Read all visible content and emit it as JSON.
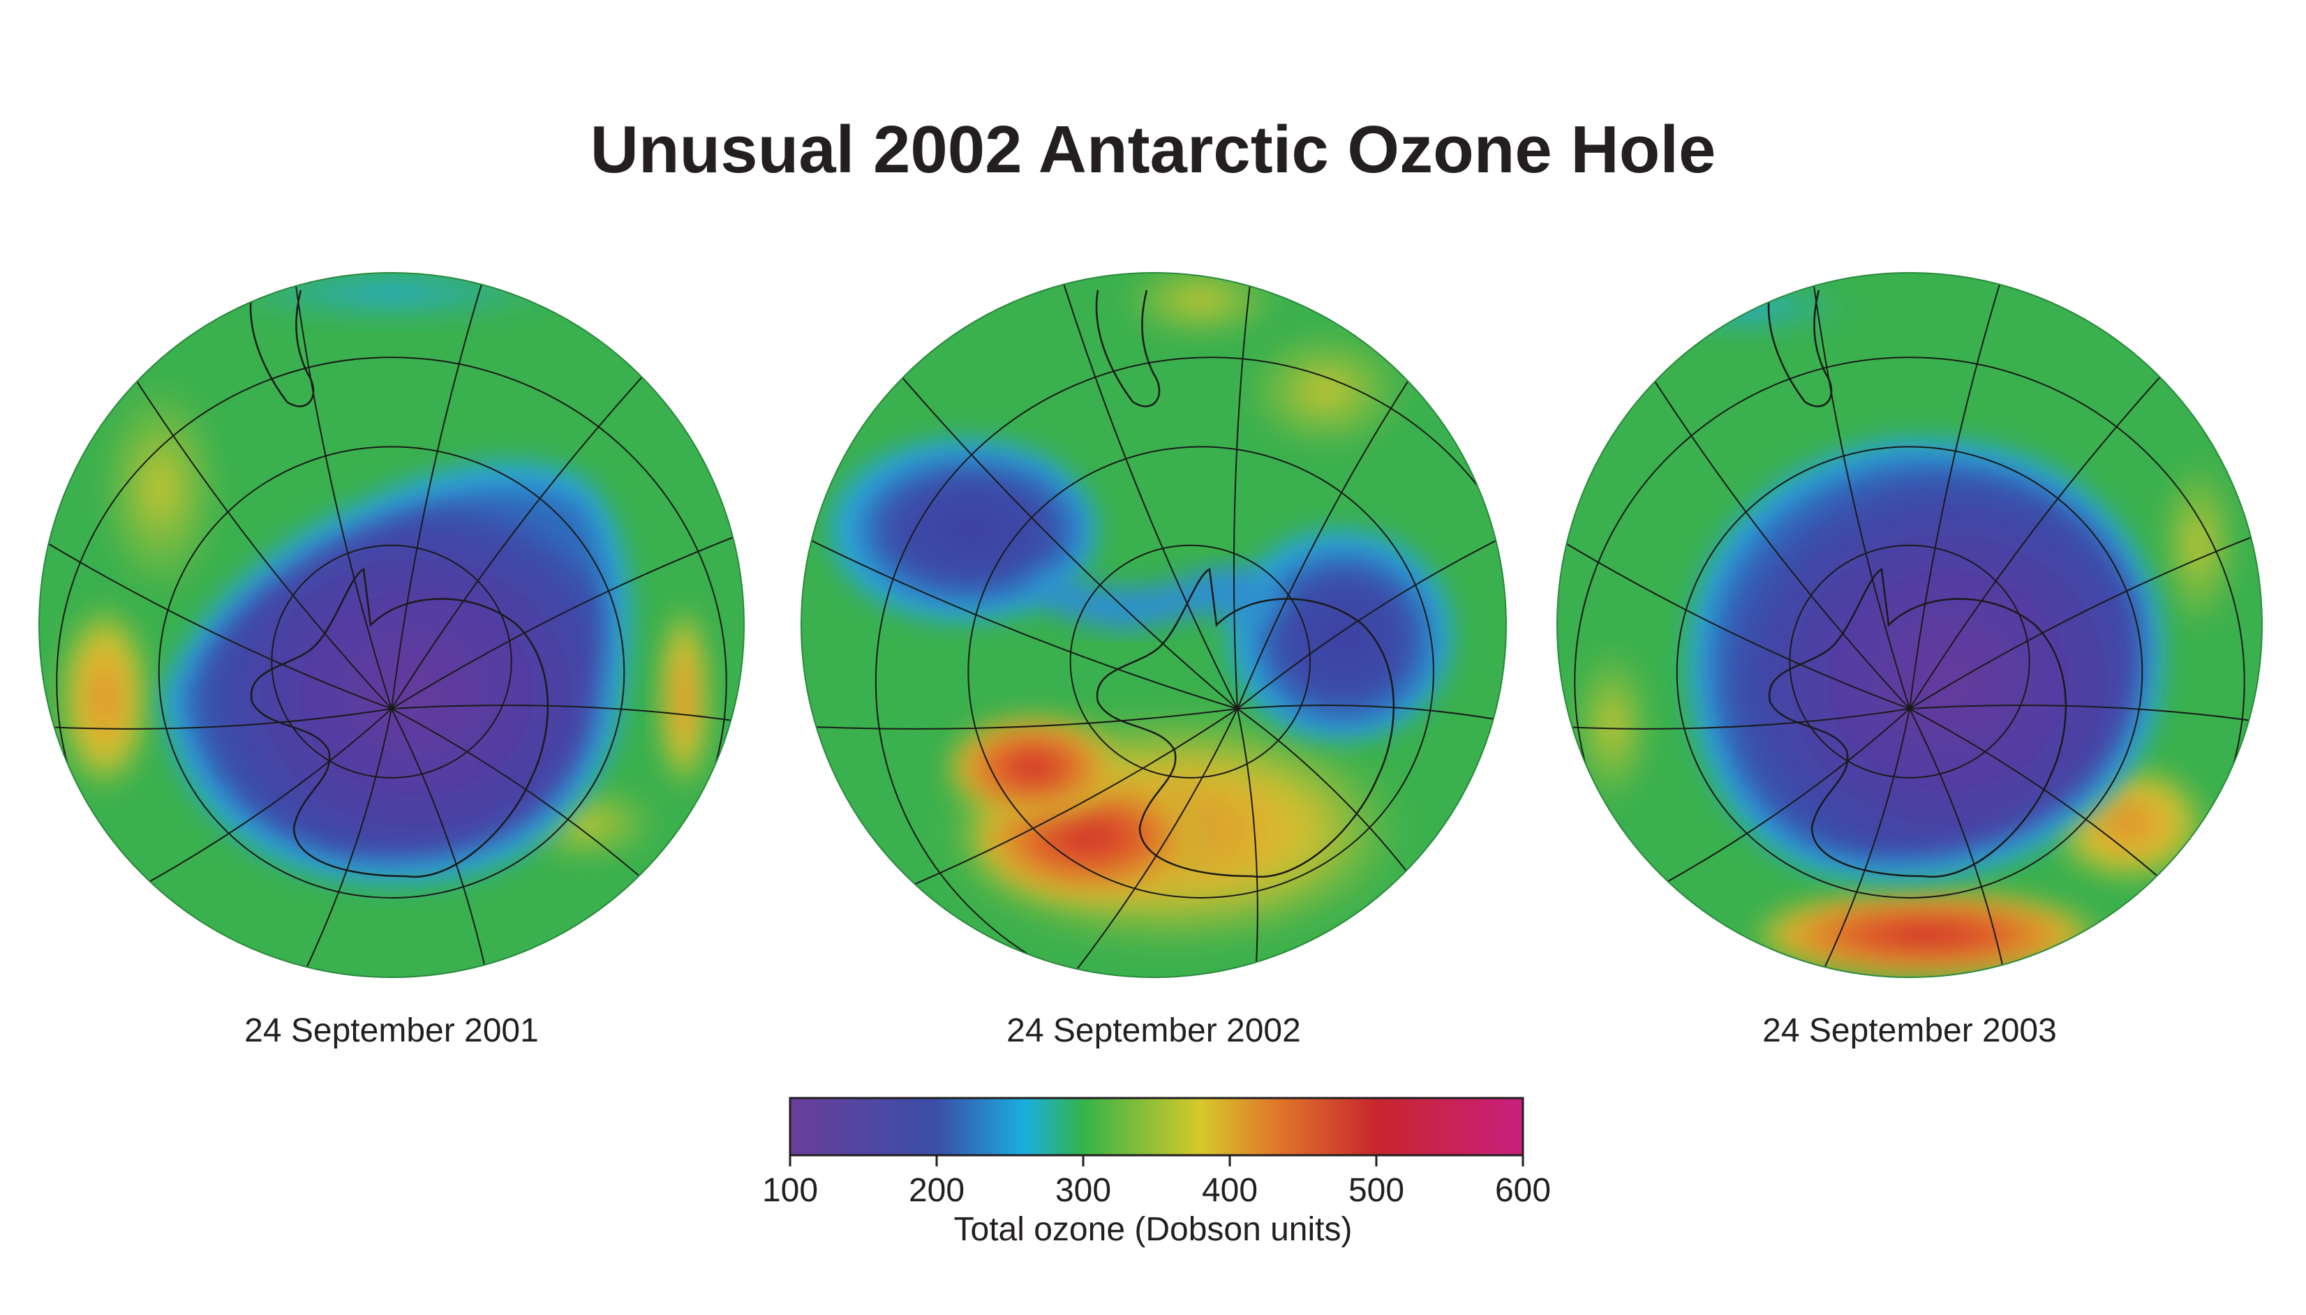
{
  "title": "Unusual 2002 Antarctic Ozone Hole",
  "maps": [
    {
      "id": "map-2001",
      "date": "24 September 2001",
      "hole": "large ozone hole covering Antarctica"
    },
    {
      "id": "map-2002",
      "date": "24 September 2002",
      "hole": "ozone hole split into two lobes"
    },
    {
      "id": "map-2003",
      "date": "24 September 2003",
      "hole": "large ozone hole covering Antarctica"
    }
  ],
  "legend": {
    "title": "Total ozone (Dobson units)",
    "ticks": [
      "100",
      "200",
      "300",
      "400",
      "500",
      "600"
    ],
    "range": [
      100,
      600
    ],
    "colors": {
      "100": "#6a3d9a",
      "200": "#3a4fa8",
      "260": "#1aaede",
      "300": "#35b34a",
      "380": "#d6c92a",
      "430": "#e07a2a",
      "500": "#c8262e",
      "600": "#c81f7e"
    }
  },
  "colors": {
    "background": "#ffffff",
    "text": "#231f20",
    "graticule": "#1a1a1a",
    "coastline": "#1a1a1a"
  }
}
